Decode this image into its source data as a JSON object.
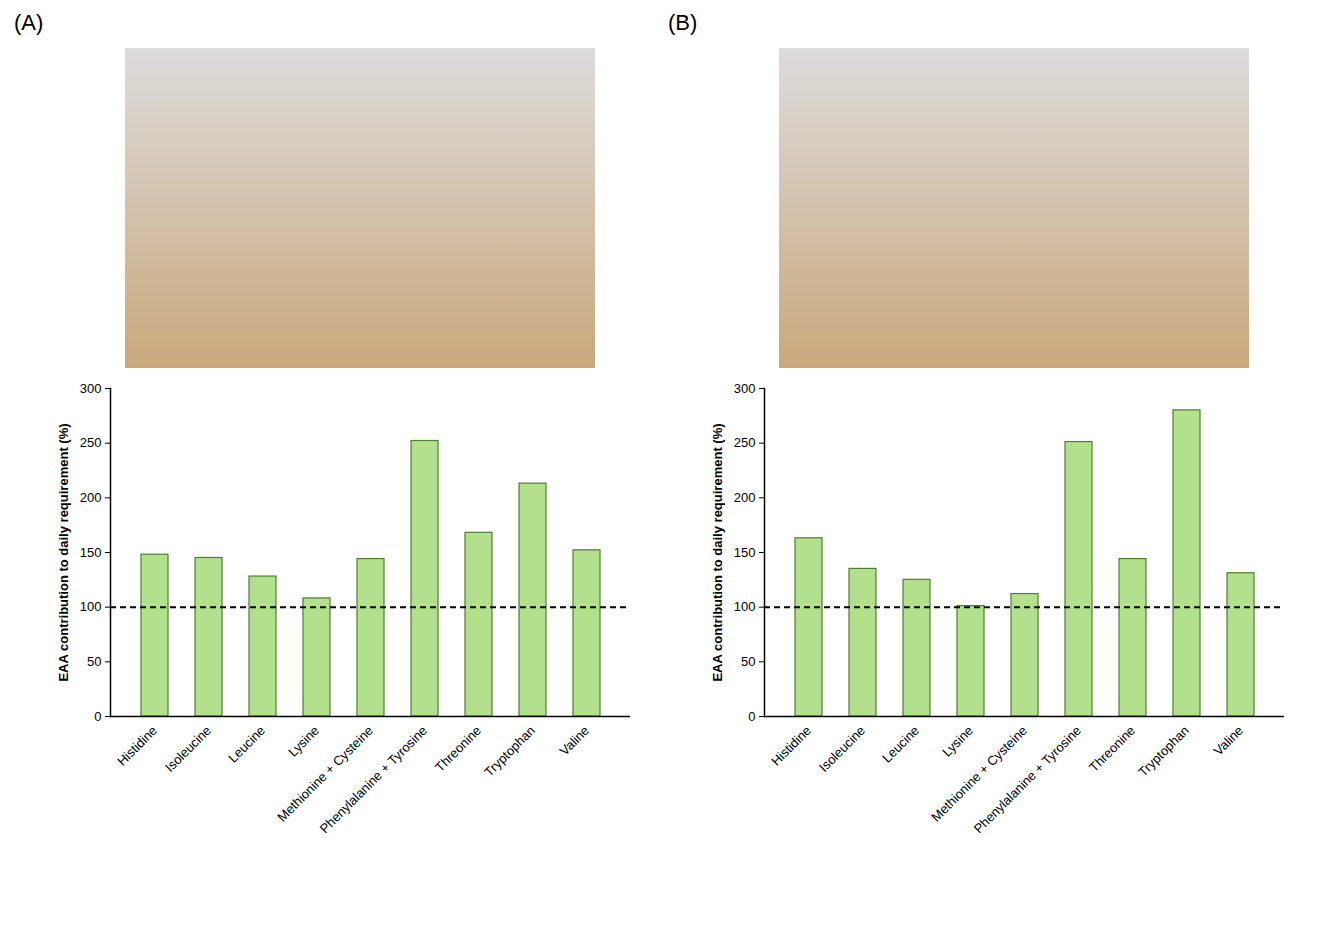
{
  "chart_data": [
    {
      "type": "bar",
      "panel": "(A)",
      "y_label": "EAA contribution to daily requirement (%)",
      "categories": [
        "Histidine",
        "Isoleucine",
        "Leucine",
        "Lysine",
        "Methionine + Cysteine",
        "Phenylalanine + Tyrosine",
        "Threonine",
        "Tryptophan",
        "Valine"
      ],
      "values": [
        148,
        145,
        128,
        108,
        144,
        252,
        168,
        213,
        152
      ],
      "color": "#b3e08c",
      "reference": 100,
      "ylim": [
        0,
        300
      ],
      "yticks": [
        0,
        50,
        100,
        150,
        200,
        250,
        300
      ],
      "grid": false
    },
    {
      "type": "bar",
      "panel": "(B)",
      "y_label": "EAA contribution to daily requirement (%)",
      "categories": [
        "Histidine",
        "Isoleucine",
        "Leucine",
        "Lysine",
        "Methionine + Cysteine",
        "Phenylalanine + Tyrosine",
        "Threonine",
        "Tryptophan",
        "Valine"
      ],
      "values": [
        163,
        135,
        125,
        101,
        112,
        251,
        144,
        280,
        131
      ],
      "color": "#b3e08c",
      "reference": 100,
      "ylim": [
        0,
        300
      ],
      "yticks": [
        0,
        50,
        100,
        150,
        200,
        250,
        300
      ],
      "grid": false
    }
  ]
}
